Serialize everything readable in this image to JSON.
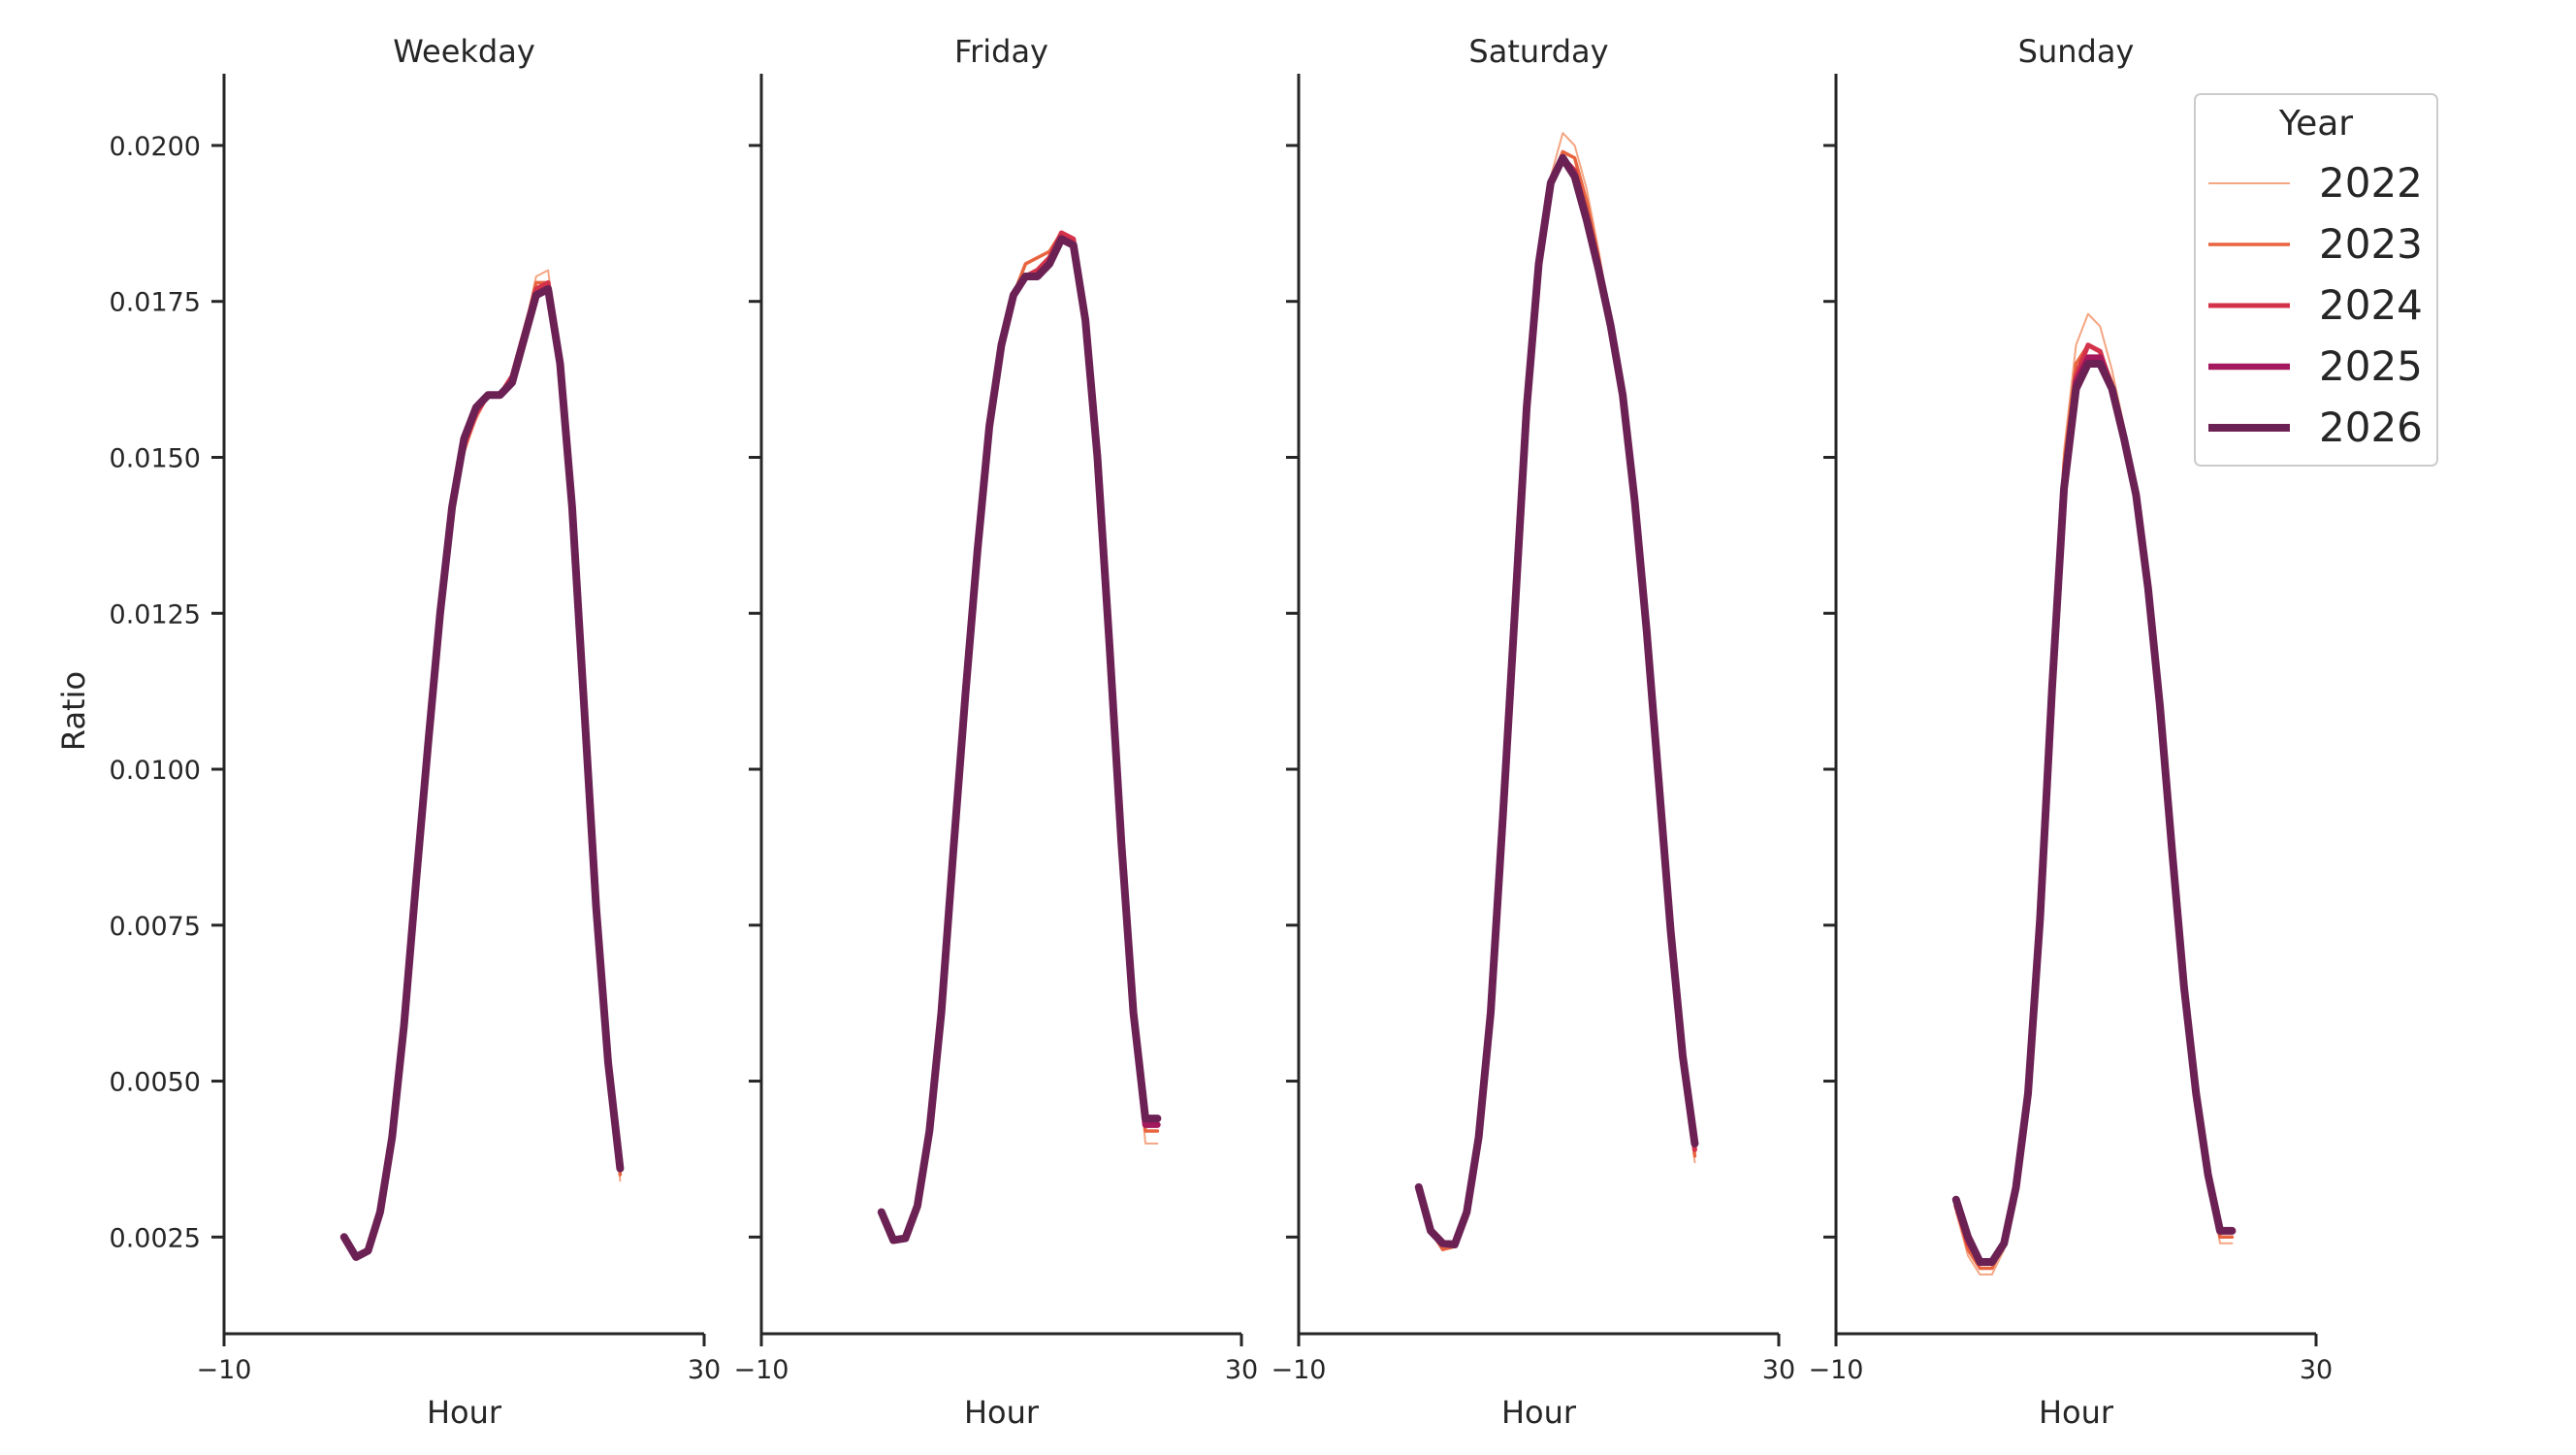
{
  "colors": {
    "2022": "#f4a582",
    "2023": "#e8643f",
    "2024": "#d4324a",
    "2025": "#a4185d",
    "2026": "#6c2154",
    "axis": "#262626",
    "legend_border": "#cccccc"
  },
  "chart_data": {
    "type": "line",
    "ylabel": "Ratio",
    "ylim": [
      0.00095,
      0.02115
    ],
    "yticks": [
      0.0025,
      0.005,
      0.0075,
      0.01,
      0.0125,
      0.015,
      0.0175,
      0.02
    ],
    "ytick_labels": [
      "0.0025",
      "0.0050",
      "0.0075",
      "0.0100",
      "0.0125",
      "0.0150",
      "0.0175",
      "0.0200"
    ],
    "xlim": [
      -10,
      30
    ],
    "xticks": [
      -10,
      30
    ],
    "xtick_labels": [
      "−10",
      "30"
    ],
    "grid": false,
    "legend": {
      "title": "Year",
      "placement": "top-right",
      "entries": [
        "2022",
        "2023",
        "2024",
        "2025",
        "2026"
      ]
    },
    "panels": [
      {
        "title": "Weekday",
        "xlabel": "Hour",
        "x": [
          0,
          1,
          2,
          3,
          4,
          5,
          6,
          7,
          8,
          9,
          10,
          11,
          12,
          13,
          14,
          15,
          16,
          17,
          18,
          19,
          20,
          21,
          22,
          23
        ],
        "series": [
          {
            "name": "2022",
            "values": [
              0.0025,
              0.00218,
              0.00228,
              0.0029,
              0.0041,
              0.0059,
              0.0082,
              0.0104,
              0.0125,
              0.0142,
              0.0151,
              0.0156,
              0.016,
              0.016,
              0.0163,
              0.017,
              0.0179,
              0.018,
              0.0165,
              0.0142,
              0.011,
              0.0077,
              0.0053,
              0.0034
            ]
          },
          {
            "name": "2023",
            "values": [
              0.0025,
              0.00218,
              0.00228,
              0.0029,
              0.0041,
              0.0059,
              0.0082,
              0.0104,
              0.0125,
              0.0142,
              0.0151,
              0.0157,
              0.016,
              0.016,
              0.0163,
              0.017,
              0.0178,
              0.0178,
              0.0165,
              0.0142,
              0.011,
              0.0078,
              0.0053,
              0.0035
            ]
          },
          {
            "name": "2024",
            "values": [
              0.0025,
              0.00218,
              0.00228,
              0.0029,
              0.0041,
              0.0059,
              0.0082,
              0.0104,
              0.0125,
              0.0142,
              0.0152,
              0.0157,
              0.016,
              0.016,
              0.0163,
              0.017,
              0.0177,
              0.0178,
              0.0165,
              0.0142,
              0.011,
              0.0078,
              0.0053,
              0.0036
            ]
          },
          {
            "name": "2025",
            "values": [
              0.0025,
              0.00218,
              0.00228,
              0.0029,
              0.0041,
              0.0059,
              0.0082,
              0.0104,
              0.0125,
              0.0142,
              0.0153,
              0.0158,
              0.016,
              0.016,
              0.0162,
              0.0169,
              0.0176,
              0.0177,
              0.0165,
              0.0142,
              0.011,
              0.0078,
              0.0053,
              0.0036
            ]
          },
          {
            "name": "2026",
            "values": [
              0.0025,
              0.00218,
              0.00228,
              0.0029,
              0.0041,
              0.0059,
              0.0082,
              0.0104,
              0.0125,
              0.0142,
              0.0153,
              0.0158,
              0.016,
              0.016,
              0.0162,
              0.0169,
              0.0176,
              0.0177,
              0.0165,
              0.0142,
              0.011,
              0.0078,
              0.0053,
              0.0036
            ]
          }
        ]
      },
      {
        "title": "Friday",
        "xlabel": "Hour",
        "x": [
          0,
          1,
          2,
          3,
          4,
          5,
          6,
          7,
          8,
          9,
          10,
          11,
          12,
          13,
          14,
          15,
          16,
          17,
          18,
          19,
          20,
          21,
          22,
          23
        ],
        "series": [
          {
            "name": "2022",
            "values": [
              0.0029,
              0.00245,
              0.00248,
              0.003,
              0.0042,
              0.0061,
              0.0087,
              0.0112,
              0.0135,
              0.0155,
              0.0168,
              0.0176,
              0.0181,
              0.0182,
              0.0183,
              0.0186,
              0.0185,
              0.0172,
              0.015,
              0.012,
              0.0088,
              0.0061,
              0.004,
              0.004
            ]
          },
          {
            "name": "2023",
            "values": [
              0.0029,
              0.00245,
              0.00248,
              0.003,
              0.0042,
              0.0061,
              0.0087,
              0.0112,
              0.0135,
              0.0155,
              0.0168,
              0.0176,
              0.0181,
              0.0182,
              0.0183,
              0.0186,
              0.0185,
              0.0172,
              0.015,
              0.012,
              0.0088,
              0.0061,
              0.0042,
              0.0042
            ]
          },
          {
            "name": "2024",
            "values": [
              0.0029,
              0.00245,
              0.00248,
              0.003,
              0.0042,
              0.0061,
              0.0087,
              0.0112,
              0.0135,
              0.0155,
              0.0168,
              0.0176,
              0.0179,
              0.018,
              0.0182,
              0.0186,
              0.0185,
              0.0172,
              0.015,
              0.012,
              0.0088,
              0.0061,
              0.0043,
              0.0043
            ]
          },
          {
            "name": "2025",
            "values": [
              0.0029,
              0.00245,
              0.00248,
              0.003,
              0.0042,
              0.0061,
              0.0087,
              0.0112,
              0.0135,
              0.0155,
              0.0168,
              0.0176,
              0.0179,
              0.0179,
              0.0181,
              0.0185,
              0.0184,
              0.0172,
              0.015,
              0.012,
              0.0088,
              0.0061,
              0.0043,
              0.0043
            ]
          },
          {
            "name": "2026",
            "values": [
              0.0029,
              0.00245,
              0.00248,
              0.003,
              0.0042,
              0.0061,
              0.0087,
              0.0112,
              0.0135,
              0.0155,
              0.0168,
              0.0176,
              0.0179,
              0.0179,
              0.0181,
              0.0185,
              0.0184,
              0.0172,
              0.015,
              0.012,
              0.0088,
              0.0061,
              0.0044,
              0.0044
            ]
          }
        ]
      },
      {
        "title": "Saturday",
        "xlabel": "Hour",
        "x": [
          0,
          1,
          2,
          3,
          4,
          5,
          6,
          7,
          8,
          9,
          10,
          11,
          12,
          13,
          14,
          15,
          16,
          17,
          18,
          19,
          20,
          21,
          22,
          23
        ],
        "series": [
          {
            "name": "2022",
            "values": [
              0.0033,
              0.0026,
              0.0023,
              0.00235,
              0.0029,
              0.0041,
              0.0061,
              0.0092,
              0.0125,
              0.0158,
              0.0181,
              0.0195,
              0.0202,
              0.02,
              0.0193,
              0.0183,
              0.0172,
              0.016,
              0.0143,
              0.0122,
              0.0098,
              0.0074,
              0.0054,
              0.0037
            ]
          },
          {
            "name": "2023",
            "values": [
              0.0033,
              0.0026,
              0.0023,
              0.00235,
              0.0029,
              0.0041,
              0.0061,
              0.0092,
              0.0125,
              0.0158,
              0.0181,
              0.0194,
              0.0199,
              0.0198,
              0.0191,
              0.0182,
              0.0171,
              0.016,
              0.0143,
              0.0122,
              0.0098,
              0.0074,
              0.0054,
              0.0038
            ]
          },
          {
            "name": "2024",
            "values": [
              0.0033,
              0.0026,
              0.0024,
              0.00238,
              0.0029,
              0.0041,
              0.0061,
              0.0092,
              0.0125,
              0.0158,
              0.0181,
              0.0194,
              0.0198,
              0.0196,
              0.0189,
              0.0181,
              0.0171,
              0.016,
              0.0143,
              0.0122,
              0.0098,
              0.0074,
              0.0054,
              0.0039
            ]
          },
          {
            "name": "2025",
            "values": [
              0.0033,
              0.0026,
              0.0024,
              0.00238,
              0.0029,
              0.0041,
              0.0061,
              0.0092,
              0.0125,
              0.0158,
              0.0181,
              0.0194,
              0.0198,
              0.0195,
              0.0188,
              0.018,
              0.0171,
              0.016,
              0.0143,
              0.0122,
              0.0098,
              0.0074,
              0.0054,
              0.004
            ]
          },
          {
            "name": "2026",
            "values": [
              0.0033,
              0.0026,
              0.0024,
              0.00238,
              0.0029,
              0.0041,
              0.0061,
              0.0092,
              0.0125,
              0.0158,
              0.0181,
              0.0194,
              0.0198,
              0.0195,
              0.0188,
              0.018,
              0.0171,
              0.016,
              0.0143,
              0.0122,
              0.0098,
              0.0074,
              0.0054,
              0.004
            ]
          }
        ]
      },
      {
        "title": "Sunday",
        "xlabel": "Hour",
        "x": [
          0,
          1,
          2,
          3,
          4,
          5,
          6,
          7,
          8,
          9,
          10,
          11,
          12,
          13,
          14,
          15,
          16,
          17,
          18,
          19,
          20,
          21,
          22,
          23
        ],
        "series": [
          {
            "name": "2022",
            "values": [
              0.0029,
              0.0022,
              0.0019,
              0.0019,
              0.0023,
              0.0033,
              0.005,
              0.008,
              0.0118,
              0.0151,
              0.0168,
              0.0173,
              0.0171,
              0.0164,
              0.0155,
              0.0145,
              0.013,
              0.011,
              0.0087,
              0.0065,
              0.0048,
              0.0035,
              0.0024,
              0.0024
            ]
          },
          {
            "name": "2023",
            "values": [
              0.003,
              0.0023,
              0.002,
              0.002,
              0.0024,
              0.0033,
              0.0049,
              0.0078,
              0.0116,
              0.0149,
              0.0165,
              0.0168,
              0.0167,
              0.0162,
              0.0154,
              0.0144,
              0.0129,
              0.011,
              0.0087,
              0.0065,
              0.0048,
              0.0035,
              0.0025,
              0.0025
            ]
          },
          {
            "name": "2024",
            "values": [
              0.003,
              0.0024,
              0.0021,
              0.0021,
              0.0024,
              0.0033,
              0.0049,
              0.0077,
              0.0115,
              0.0147,
              0.0163,
              0.0168,
              0.0167,
              0.0161,
              0.0153,
              0.0144,
              0.0129,
              0.011,
              0.0087,
              0.0065,
              0.0048,
              0.0035,
              0.0026,
              0.0026
            ]
          },
          {
            "name": "2025",
            "values": [
              0.0031,
              0.0025,
              0.0021,
              0.0021,
              0.0024,
              0.0033,
              0.0048,
              0.0076,
              0.0113,
              0.0145,
              0.0162,
              0.0166,
              0.0166,
              0.0161,
              0.0153,
              0.0144,
              0.0129,
              0.011,
              0.0087,
              0.0065,
              0.0048,
              0.0035,
              0.0026,
              0.0026
            ]
          },
          {
            "name": "2026",
            "values": [
              0.0031,
              0.0025,
              0.0021,
              0.0021,
              0.0024,
              0.0033,
              0.0048,
              0.0076,
              0.0113,
              0.0145,
              0.0161,
              0.0165,
              0.0165,
              0.0161,
              0.0153,
              0.0144,
              0.0129,
              0.011,
              0.0087,
              0.0065,
              0.0048,
              0.0035,
              0.0026,
              0.0026
            ]
          }
        ]
      }
    ]
  }
}
